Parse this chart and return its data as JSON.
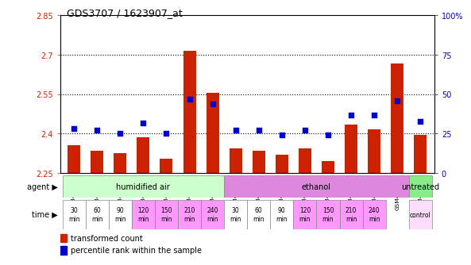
{
  "title": "GDS3707 / 1623907_at",
  "samples": [
    "GSM455231",
    "GSM455232",
    "GSM455233",
    "GSM455234",
    "GSM455235",
    "GSM455236",
    "GSM455237",
    "GSM455238",
    "GSM455239",
    "GSM455240",
    "GSM455241",
    "GSM455242",
    "GSM455243",
    "GSM455244",
    "GSM455245",
    "GSM455246"
  ],
  "red_values": [
    2.355,
    2.335,
    2.325,
    2.385,
    2.305,
    2.715,
    2.555,
    2.345,
    2.335,
    2.32,
    2.345,
    2.295,
    2.435,
    2.415,
    2.665,
    2.395
  ],
  "blue_values": [
    28,
    27,
    25,
    32,
    25,
    47,
    44,
    27,
    27,
    24,
    27,
    24,
    37,
    37,
    46,
    33
  ],
  "ylim_left": [
    2.25,
    2.85
  ],
  "ylim_right": [
    0,
    100
  ],
  "yticks_left": [
    2.25,
    2.4,
    2.55,
    2.7,
    2.85
  ],
  "yticks_right": [
    0,
    25,
    50,
    75,
    100
  ],
  "ytick_labels_left": [
    "2.25",
    "2.4",
    "2.55",
    "2.7",
    "2.85"
  ],
  "ytick_labels_right": [
    "0",
    "25",
    "50",
    "75",
    "100%"
  ],
  "hlines": [
    2.4,
    2.55,
    2.7
  ],
  "bar_color": "#cc2200",
  "dot_color": "#0000cc",
  "bar_bottom": 2.25,
  "agent_groups": [
    {
      "label": "humidified air",
      "start": 0,
      "end": 7,
      "color": "#ccffcc"
    },
    {
      "label": "ethanol",
      "start": 7,
      "end": 15,
      "color": "#dd88dd"
    },
    {
      "label": "untreated",
      "start": 15,
      "end": 16,
      "color": "#88ee88"
    }
  ],
  "time_labels": [
    "30\nmin",
    "60\nmin",
    "90\nmin",
    "120\nmin",
    "150\nmin",
    "210\nmin",
    "240\nmin",
    "30\nmin",
    "60\nmin",
    "90\nmin",
    "120\nmin",
    "150\nmin",
    "210\nmin",
    "240\nmin",
    "control"
  ],
  "time_colors": [
    "#ffffff",
    "#ffffff",
    "#ffffff",
    "#ff99ff",
    "#ff99ff",
    "#ff99ff",
    "#ff99ff",
    "#ffffff",
    "#ffffff",
    "#ffffff",
    "#ff99ff",
    "#ff99ff",
    "#ff99ff",
    "#ff99ff",
    "#ffddff"
  ],
  "time_indices": [
    0,
    1,
    2,
    3,
    4,
    5,
    6,
    7,
    8,
    9,
    10,
    11,
    12,
    13,
    15
  ],
  "tick_label_color_left": "#cc2200",
  "tick_label_color_right": "#0000cc",
  "plot_bg": "#ffffff"
}
